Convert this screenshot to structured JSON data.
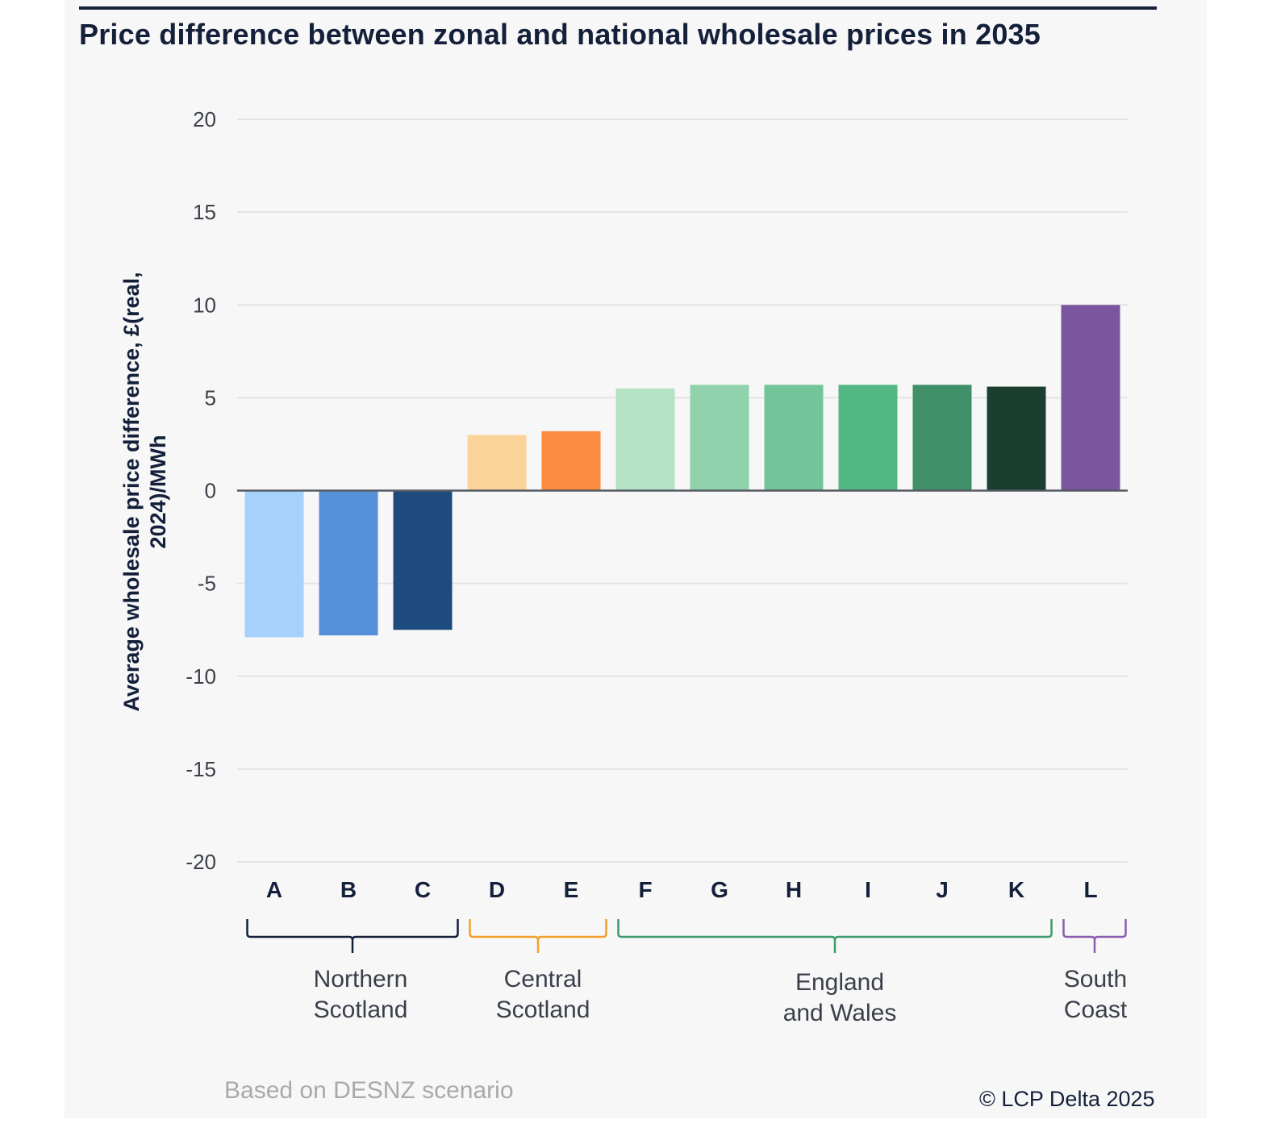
{
  "title": "Price difference between zonal and national wholesale prices in 2035",
  "ylabel_lines": [
    "Average wholesale price difference, £(real,",
    "2024)/MWh"
  ],
  "source_note": "Based on DESNZ scenario",
  "copyright": "© LCP Delta 2025",
  "chart_data": {
    "type": "bar",
    "title": "Price difference between zonal and national wholesale prices in 2035",
    "xlabel": "",
    "ylabel": "Average wholesale price difference, £(real, 2024)/MWh",
    "ylim": [
      -20,
      20
    ],
    "yticks": [
      20,
      15,
      10,
      5,
      0,
      -5,
      -10,
      -15,
      -20
    ],
    "grid": true,
    "categories": [
      "A",
      "B",
      "C",
      "D",
      "E",
      "F",
      "G",
      "H",
      "I",
      "J",
      "K",
      "L"
    ],
    "values": [
      -7.9,
      -7.8,
      -7.5,
      3.0,
      3.2,
      5.5,
      5.7,
      5.7,
      5.7,
      5.7,
      5.6,
      10.0
    ],
    "colors": [
      "#a6d1fb",
      "#5591d9",
      "#1e4b7e",
      "#fcd49a",
      "#fb8b3e",
      "#b6e2c5",
      "#90d2ab",
      "#74c49a",
      "#52b783",
      "#3f8f69",
      "#1b3f2f",
      "#7b559e"
    ],
    "groups": [
      {
        "label_lines": [
          "Northern",
          "Scotland"
        ],
        "categories": [
          "A",
          "B",
          "C"
        ],
        "color": "#14203a"
      },
      {
        "label_lines": [
          "Central",
          "Scotland"
        ],
        "categories": [
          "D",
          "E"
        ],
        "color": "#f0a12c"
      },
      {
        "label_lines": [
          "England",
          "and Wales"
        ],
        "categories": [
          "F",
          "G",
          "H",
          "I",
          "J",
          "K"
        ],
        "color": "#3f9a6c"
      },
      {
        "label_lines": [
          "South",
          "Coast"
        ],
        "categories": [
          "L"
        ],
        "color": "#8a5db0"
      }
    ]
  }
}
